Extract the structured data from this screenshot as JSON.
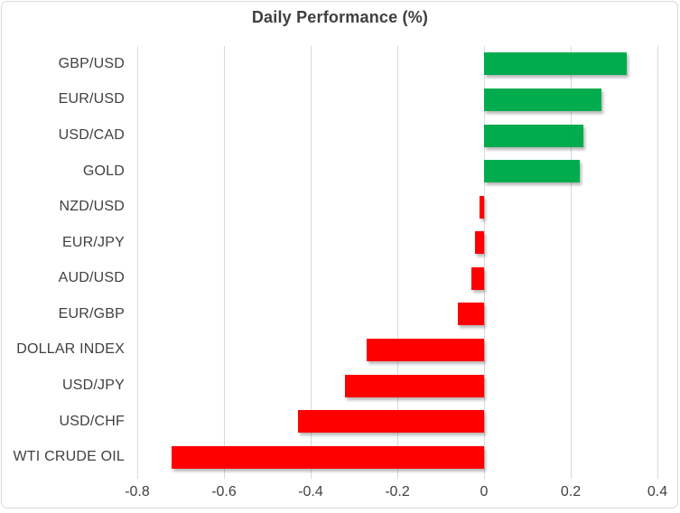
{
  "title": "Daily Performance (%)",
  "colors": {
    "positive_bar": "#00AC4E",
    "negative_bar": "#FF0000",
    "gridline": "#D9D9D9",
    "frame_border": "#D9D9D9",
    "text": "#404040",
    "title_text": "#3F3F3F"
  },
  "chart_data": {
    "type": "bar",
    "orientation": "horizontal",
    "title": "Daily Performance (%)",
    "xlabel": "",
    "ylabel": "",
    "categories": [
      "GBP/USD",
      "EUR/USD",
      "USD/CAD",
      "GOLD",
      "NZD/USD",
      "EUR/JPY",
      "AUD/USD",
      "EUR/GBP",
      "DOLLAR INDEX",
      "USD/JPY",
      "USD/CHF",
      "WTI CRUDE OIL"
    ],
    "values": [
      0.33,
      0.27,
      0.23,
      0.22,
      -0.01,
      -0.02,
      -0.03,
      -0.06,
      -0.27,
      -0.32,
      -0.43,
      -0.72
    ],
    "xlim": [
      -0.8,
      0.4
    ],
    "xticks": [
      -0.8,
      -0.6,
      -0.4,
      -0.2,
      0,
      0.2,
      0.4
    ],
    "xtick_labels": [
      "-0.8",
      "-0.6",
      "-0.4",
      "-0.2",
      "0",
      "0.2",
      "0.4"
    ],
    "grid": true,
    "legend": false,
    "bar_color_rule": "green if positive, red if negative"
  }
}
